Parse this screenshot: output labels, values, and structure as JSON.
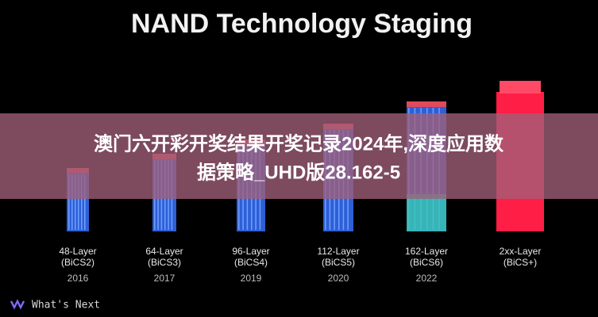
{
  "title": "NAND Technology Staging",
  "stages": [
    {
      "layer": "48-Layer",
      "generation": "(BiCS2)",
      "year": "2016"
    },
    {
      "layer": "64-Layer",
      "generation": "(BiCS3)",
      "year": "2017"
    },
    {
      "layer": "96-Layer",
      "generation": "(BiCS4)",
      "year": "2019"
    },
    {
      "layer": "112-Layer",
      "generation": "(BiCS5)",
      "year": "2020"
    },
    {
      "layer": "162-Layer",
      "generation": "(BiCS6)",
      "year": "2022"
    },
    {
      "layer": "2xx-Layer",
      "generation": "(BiCS+)",
      "year": ""
    }
  ],
  "banner": {
    "lines": [
      "澳门六开彩开奖结果开奖记录2024年,深度应用数",
      "据策略_UHD版28.162-5"
    ]
  },
  "footer": {
    "label": "What's Next"
  }
}
